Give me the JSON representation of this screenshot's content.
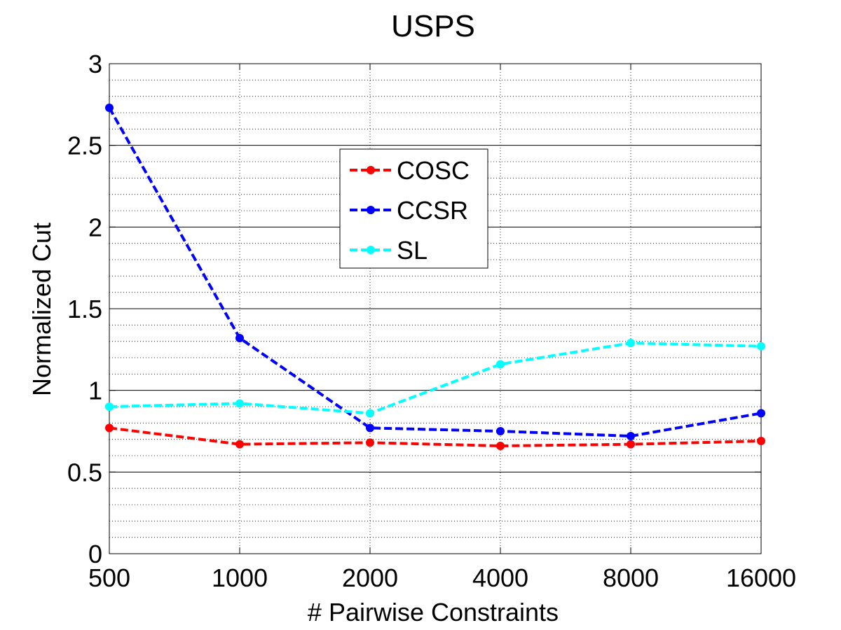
{
  "chart_data": {
    "type": "line",
    "title": "USPS",
    "xlabel": "# Pairwise Constraints",
    "ylabel": "Normalized Cut",
    "categories": [
      "500",
      "1000",
      "2000",
      "4000",
      "8000",
      "16000"
    ],
    "ylim": [
      0,
      3
    ],
    "yticks": [
      "0",
      "0.5",
      "1",
      "1.5",
      "2",
      "2.5",
      "3"
    ],
    "ytick_values": [
      0,
      0.5,
      1,
      1.5,
      2,
      2.5,
      3
    ],
    "minor_grid_step": 0.1,
    "grid": true,
    "legend_position": "upper-center",
    "series": [
      {
        "name": "COSC",
        "color": "#ff0000",
        "values": [
          0.77,
          0.67,
          0.68,
          0.66,
          0.67,
          0.69
        ]
      },
      {
        "name": "CCSR",
        "color": "#0000ff",
        "values": [
          2.73,
          1.32,
          0.77,
          0.75,
          0.72,
          0.86
        ]
      },
      {
        "name": "SL",
        "color": "#00ffff",
        "values": [
          0.9,
          0.92,
          0.86,
          1.16,
          1.29,
          1.27
        ]
      }
    ]
  }
}
